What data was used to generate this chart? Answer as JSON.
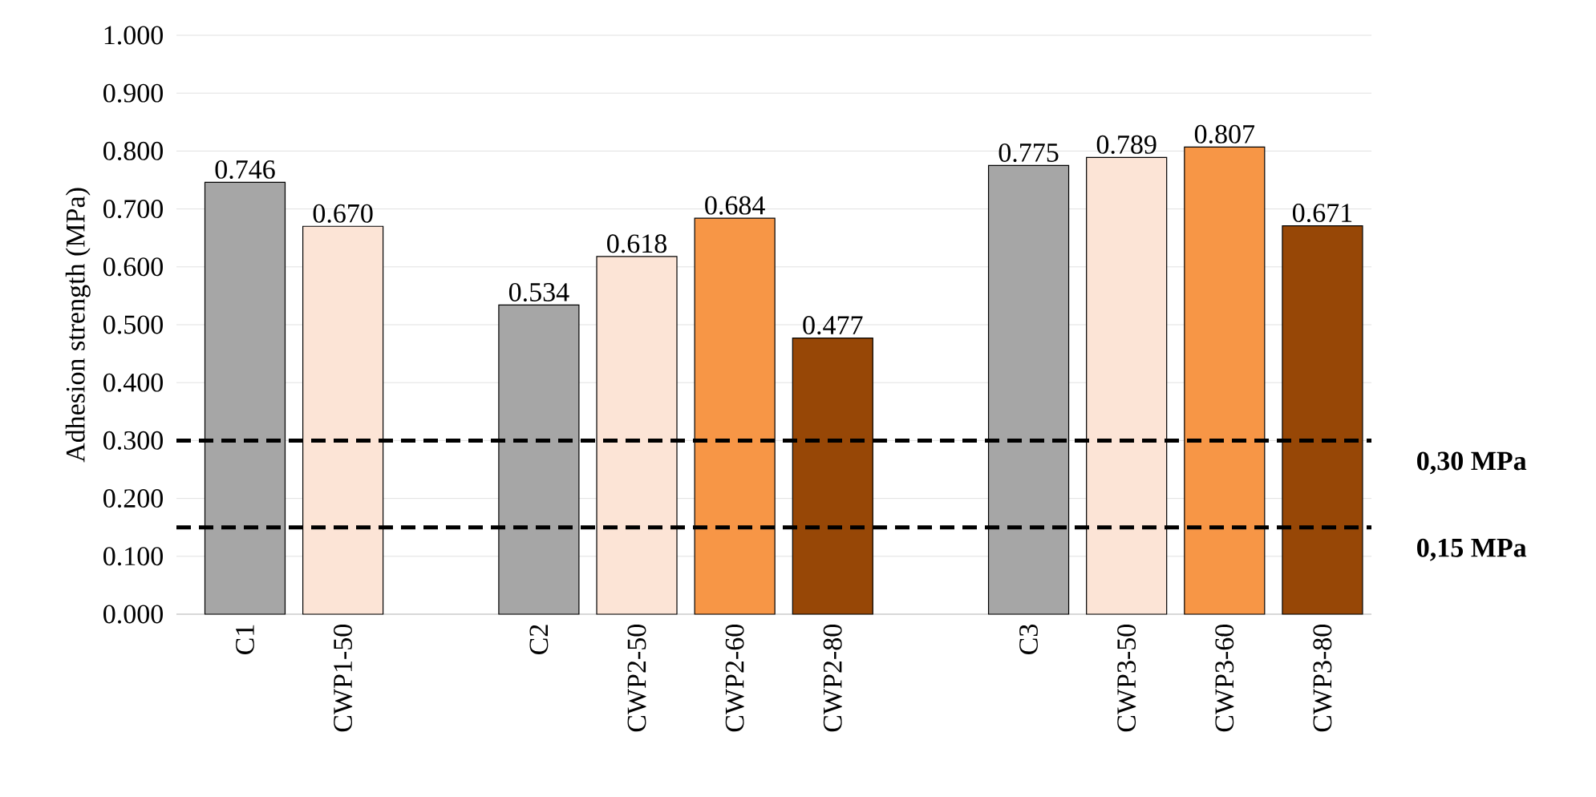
{
  "chart_data": {
    "type": "bar",
    "ylabel": "Adhesion strength (MPa)",
    "categories": [
      "C1",
      "CWP1-50",
      null,
      "C2",
      "CWP2-50",
      "CWP2-60",
      "CWP2-80",
      null,
      "C3",
      "CWP3-50",
      "CWP3-60",
      "CWP3-80"
    ],
    "values": [
      0.746,
      0.67,
      null,
      0.534,
      0.618,
      0.684,
      0.477,
      null,
      0.775,
      0.789,
      0.807,
      0.671
    ],
    "value_labels": [
      "0.746",
      "0.670",
      null,
      "0.534",
      "0.618",
      "0.684",
      "0.477",
      null,
      "0.775",
      "0.789",
      "0.807",
      "0.671"
    ],
    "colors": [
      "#a6a6a6",
      "#fce4d6",
      "#ffffff",
      "#a6a6a6",
      "#fce4d6",
      "#f79646",
      "#974706",
      "#ffffff",
      "#a6a6a6",
      "#fce4d6",
      "#f79646",
      "#974706"
    ],
    "ylim": [
      0,
      1.0
    ],
    "yticks": [
      {
        "value": 0,
        "label": "0.000"
      },
      {
        "value": 0.1,
        "label": "0.100"
      },
      {
        "value": 0.2,
        "label": "0.200"
      },
      {
        "value": 0.3,
        "label": "0.300"
      },
      {
        "value": 0.4,
        "label": "0.400"
      },
      {
        "value": 0.5,
        "label": "0.500"
      },
      {
        "value": 0.6,
        "label": "0.600"
      },
      {
        "value": 0.7,
        "label": "0.700"
      },
      {
        "value": 0.8,
        "label": "0.800"
      },
      {
        "value": 0.9,
        "label": "0.900"
      },
      {
        "value": 1.0,
        "label": "1.000"
      }
    ],
    "grid": "y",
    "ref_lines": [
      {
        "axis": "y",
        "value": 0.3,
        "label": "0,30 MPa",
        "color": "#000000",
        "line_style": "dashed"
      },
      {
        "axis": "y",
        "value": 0.15,
        "label": "0,15 MPa",
        "color": "#000000",
        "line_style": "dashed"
      }
    ]
  }
}
